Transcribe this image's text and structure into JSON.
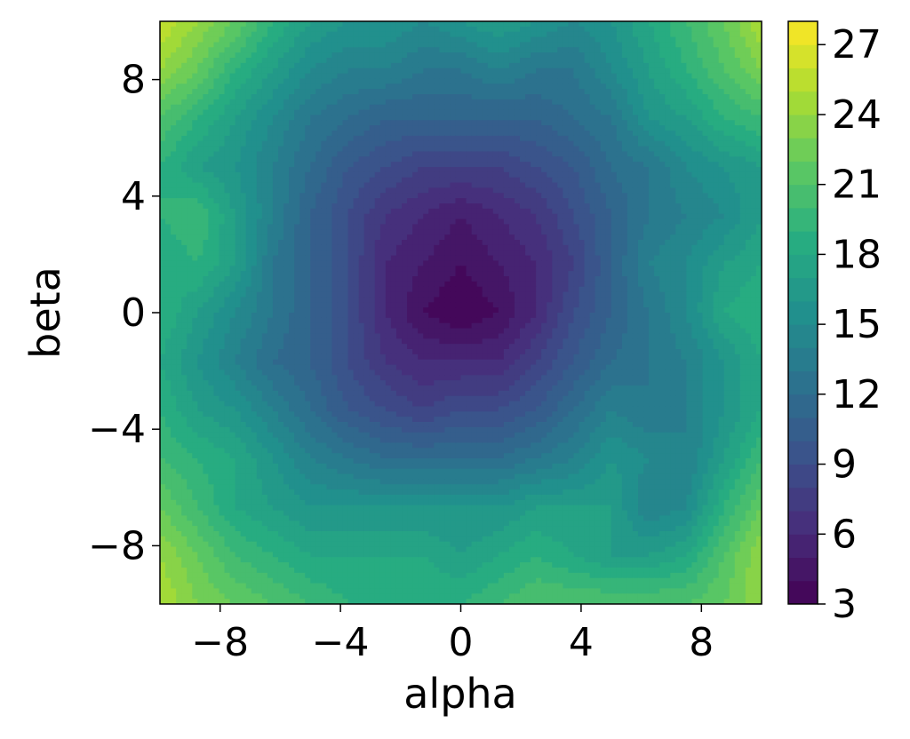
{
  "chart_data": {
    "type": "contour",
    "title": "",
    "xlabel": "alpha",
    "ylabel": "beta",
    "xlim": [
      -10,
      10
    ],
    "ylim": [
      -10,
      10
    ],
    "x_ticks": [
      -8,
      -4,
      0,
      4,
      8
    ],
    "y_ticks": [
      -8,
      -4,
      0,
      4,
      8
    ],
    "x_tick_labels": [
      "−8",
      "−4",
      "0",
      "4",
      "8"
    ],
    "y_tick_labels": [
      "−8",
      "−4",
      "0",
      "4",
      "8"
    ],
    "colorbar": {
      "colormap": "viridis",
      "range": [
        3,
        28
      ],
      "levels": 25,
      "ticks": [
        3,
        6,
        9,
        12,
        15,
        18,
        21,
        24,
        27
      ],
      "tick_labels": [
        "3",
        "6",
        "9",
        "12",
        "15",
        "18",
        "21",
        "24",
        "27"
      ]
    },
    "grid": [
      [
        26,
        24,
        22,
        19,
        17,
        16,
        16,
        15,
        16,
        17,
        16,
        15,
        16,
        18,
        20,
        22,
        25
      ],
      [
        24,
        22,
        19,
        17,
        15,
        14,
        14,
        13,
        13,
        14,
        13,
        13,
        15,
        17,
        19,
        21,
        23
      ],
      [
        21,
        19,
        17,
        15,
        13,
        12,
        11,
        11,
        11,
        11,
        11,
        12,
        13,
        16,
        17,
        19,
        20
      ],
      [
        19,
        17,
        16,
        14,
        12,
        10,
        9,
        8,
        8,
        8,
        9,
        10,
        12,
        13,
        15,
        16,
        17
      ],
      [
        19,
        20,
        17,
        14,
        11,
        9,
        7,
        6,
        5,
        6,
        7,
        9,
        11,
        13,
        14,
        15,
        17
      ],
      [
        18,
        19,
        17,
        13,
        11,
        9,
        6,
        5,
        4,
        5,
        6,
        8,
        11,
        14,
        15,
        17,
        18
      ],
      [
        19,
        17,
        15,
        13,
        11,
        9,
        6,
        4,
        3,
        4,
        6,
        9,
        11,
        13,
        15,
        18,
        19
      ],
      [
        18,
        16,
        14,
        12,
        11,
        9,
        7,
        6,
        6,
        6,
        8,
        10,
        12,
        13,
        14,
        16,
        18
      ],
      [
        19,
        17,
        16,
        14,
        12,
        10,
        9,
        8,
        9,
        9,
        10,
        12,
        14,
        13,
        14,
        16,
        18
      ],
      [
        20,
        19,
        18,
        16,
        14,
        13,
        12,
        12,
        12,
        12,
        13,
        14,
        16,
        15,
        14,
        17,
        20
      ],
      [
        22,
        20,
        18,
        17,
        16,
        16,
        16,
        16,
        16,
        16,
        17,
        17,
        17,
        14,
        15,
        19,
        22
      ],
      [
        24,
        22,
        20,
        19,
        18,
        18,
        18,
        18,
        17,
        18,
        19,
        18,
        17,
        17,
        18,
        21,
        24
      ],
      [
        25,
        23,
        22,
        21,
        20,
        19,
        19,
        19,
        19,
        20,
        21,
        21,
        21,
        21,
        21,
        22,
        24
      ]
    ]
  }
}
